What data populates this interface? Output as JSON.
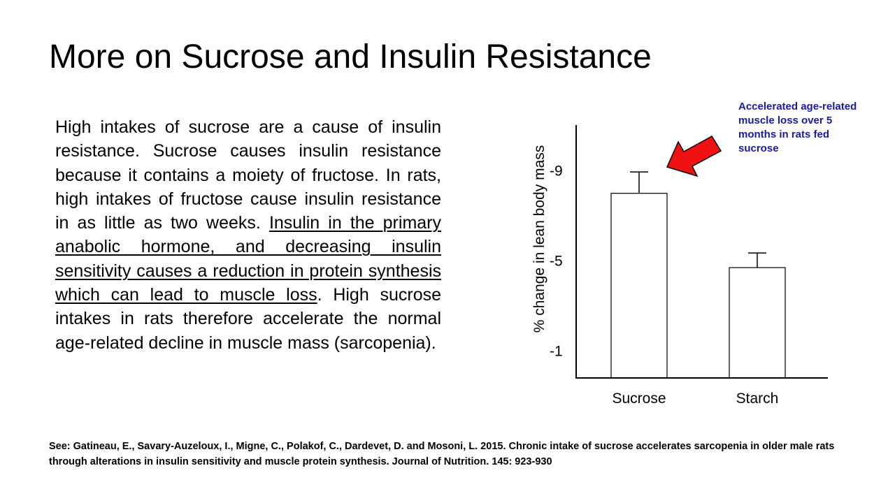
{
  "slide": {
    "title": "More on Sucrose and Insulin Resistance",
    "body": {
      "part1": "High intakes of sucrose are a cause of insulin resistance. Sucrose causes insulin resistance because it contains a moiety of fructose. In rats, high intakes of fructose cause insulin resistance in as little as two weeks. ",
      "underlined": "Insulin in the primary anabolic hormone, and decreasing insulin sensitivity causes a reduction in protein synthesis which can lead to muscle loss",
      "part2": ". High sucrose intakes in rats therefore accelerate the normal age-related decline in muscle mass (sarcopenia)."
    },
    "reference": "See: Gatineau, E., Savary-Auzeloux, I., Migne, C., Polakof, C., Dardevet, D. and Mosoni, L. 2015. Chronic intake of sucrose accelerates sarcopenia in older male rats through alterations in insulin sensitivity and muscle protein synthesis. Journal of Nutrition. 145: 923-930",
    "annotation": "Accelerated age-related muscle loss over 5 months in rats fed sucrose"
  },
  "colors": {
    "annotation_text": "#1a1aa8",
    "arrow_fill": "#ee1111",
    "arrow_stroke": "#000000",
    "bar_fill": "#ffffff",
    "axis": "#000000"
  },
  "icons": {
    "arrow": "red-arrow-icon"
  },
  "chart_data": {
    "type": "bar",
    "categories": [
      "Sucrose",
      "Starch"
    ],
    "values": [
      -8.0,
      -4.7
    ],
    "error_high": [
      -8.95,
      -5.35
    ],
    "ylabel": "% change in lean body mass",
    "xlabel": "",
    "title": "",
    "yticks": [
      -9,
      -5,
      -1
    ],
    "ylim": [
      0.2,
      -11.0
    ],
    "grid": false,
    "legend": "none"
  }
}
